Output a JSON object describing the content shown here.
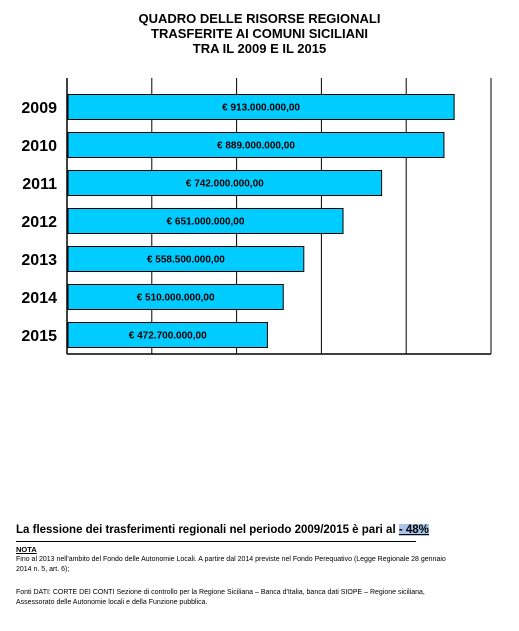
{
  "title": {
    "line1": "QUADRO DELLE RISORSE REGIONALI",
    "line2": "TRASFERITE AI COMUNI SICILIANI",
    "line3": "TRA IL 2009 E IL 2015"
  },
  "chart_data": {
    "type": "bar",
    "orientation": "horizontal",
    "categories": [
      "2009",
      "2010",
      "2011",
      "2012",
      "2013",
      "2014",
      "2015"
    ],
    "values": [
      913000000,
      889000000,
      742000000,
      651000000,
      558500000,
      510000000,
      472700000
    ],
    "value_labels": [
      "€ 913.000.000,00",
      "€ 889.000.000,00",
      "€ 742.000.000,00",
      "€ 651.000.000,00",
      "€ 558.500.000,00",
      "€ 510.000.000,00",
      "€ 472.700.000,00"
    ],
    "xlim": [
      0,
      1000000000
    ],
    "grid": true,
    "bar_color": "#00ccff"
  },
  "summary": {
    "text": "La flessione dei trasferimenti regionali nel periodo 2009/2015 è pari al ",
    "highlight": "- 48%"
  },
  "nota": {
    "heading": "NOTA",
    "text": "Fino al 2013 nell'ambito del Fondo delle Autonomie Locali. A partire dal 2014 previste nel Fondo Perequativo (Legge Regionale 28 gennaio 2014 n. 5, art. 6);"
  },
  "fonti": {
    "text": "Fonti DATI: CORTE DEI CONTI Sezione di controllo per la Regione Siciliana – Banca d'Italia, banca dati SIOPE – Regione siciliana, Assessorato delle Autonomie locali e della Funzione pubblica."
  }
}
